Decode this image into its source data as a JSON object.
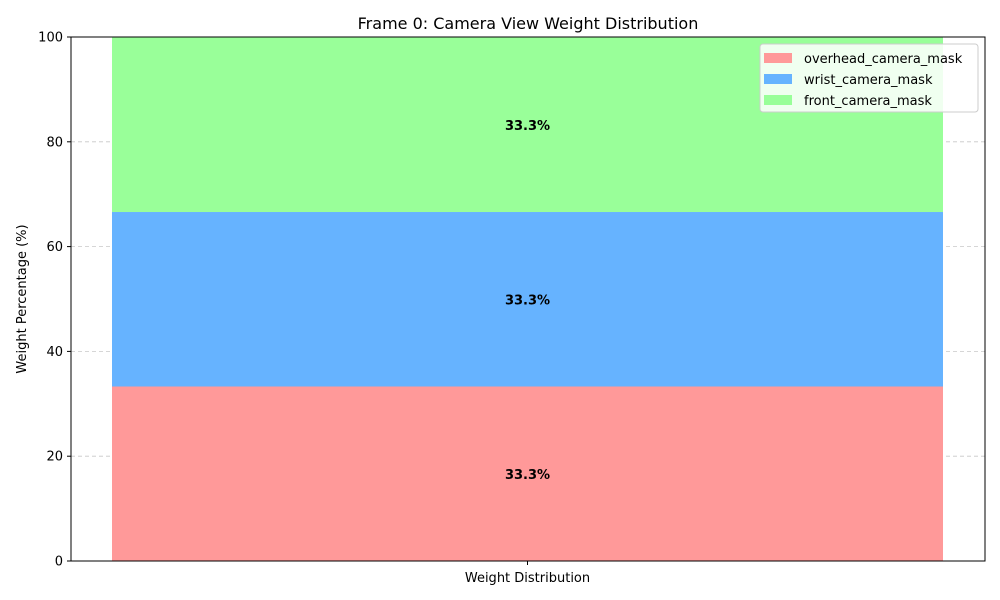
{
  "chart_data": {
    "type": "bar",
    "stacked": true,
    "title": "Frame 0: Camera View Weight Distribution",
    "xlabel": "",
    "ylabel": "Weight Percentage (%)",
    "categories": [
      "Weight Distribution"
    ],
    "ylim": [
      0,
      100
    ],
    "yticks": [
      0,
      20,
      40,
      60,
      80,
      100
    ],
    "grid": "y-dashed",
    "legend_position": "upper-right",
    "series": [
      {
        "name": "overhead_camera_mask",
        "values": [
          33.3
        ],
        "color": "#ff9999",
        "label": "33.3%"
      },
      {
        "name": "wrist_camera_mask",
        "values": [
          33.3
        ],
        "color": "#66b3ff",
        "label": "33.3%"
      },
      {
        "name": "front_camera_mask",
        "values": [
          33.3
        ],
        "color": "#99ff99",
        "label": "33.3%"
      }
    ]
  }
}
